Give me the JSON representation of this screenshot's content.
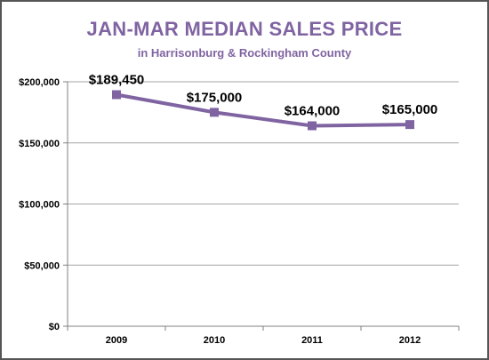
{
  "chart_data": {
    "type": "line",
    "title": "JAN-MAR MEDIAN SALES PRICE",
    "subtitle": "in Harrisonburg  & Rockingham County",
    "categories": [
      "2009",
      "2010",
      "2011",
      "2012"
    ],
    "series": [
      {
        "values": [
          189450,
          175000,
          164000,
          165000
        ]
      }
    ],
    "data_labels": [
      "$189,450",
      "$175,000",
      "$164,000",
      "$165,000"
    ],
    "y_ticks": [
      0,
      50000,
      100000,
      150000,
      200000
    ],
    "y_tick_labels": [
      "$0",
      "$50,000",
      "$100,000",
      "$150,000",
      "$200,000"
    ],
    "ylim": [
      0,
      200000
    ],
    "xlabel": "",
    "ylabel": "",
    "grid": true,
    "marker": "square",
    "colors": {
      "title": "#8064a2",
      "line": "#8064a2",
      "grid": "#a6a6a6",
      "axis": "#808080"
    }
  }
}
